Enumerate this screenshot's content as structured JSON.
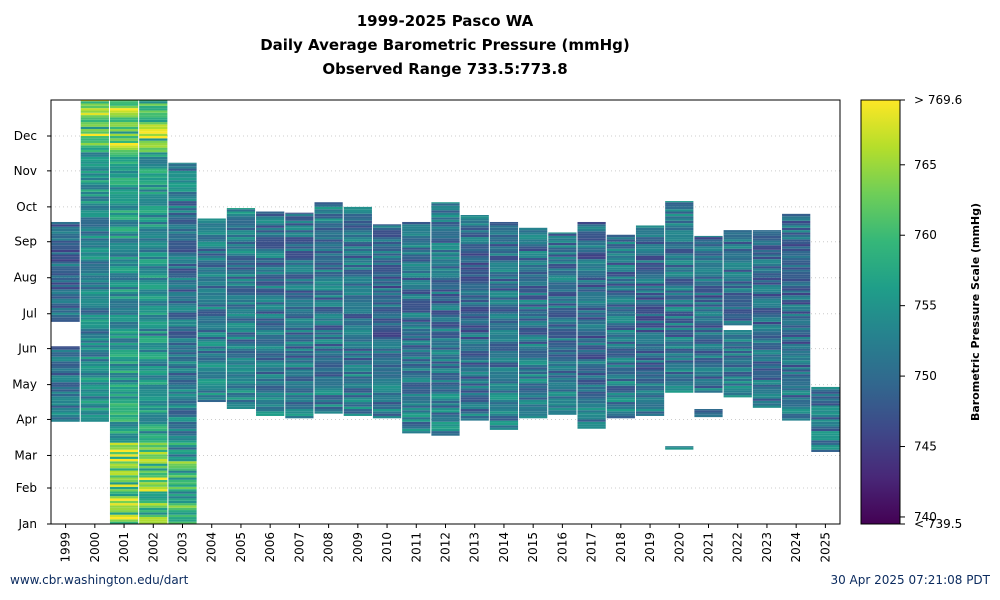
{
  "title_lines": [
    "1999-2025 Pasco WA",
    "Daily Average Barometric Pressure (mmHg)",
    "Observed Range 733.5:773.8"
  ],
  "footer": {
    "source_url": "www.cbr.washington.edu/dart",
    "timestamp": "30 Apr 2025 07:21:08 PDT"
  },
  "chart_data": {
    "type": "heatmap",
    "title": "1999-2025 Pasco WA Daily Average Barometric Pressure (mmHg) Observed Range 733.5:773.8",
    "x_label": "",
    "y_label": "",
    "colorbar_label": "Barometric Pressure Scale (mmHg)",
    "colormap": "viridis",
    "color_range": [
      739.5,
      769.6
    ],
    "colorbar_ticks": [
      "< 739.5",
      "740",
      "745",
      "750",
      "755",
      "760",
      "765",
      "> 769.6"
    ],
    "colorbar_tick_values": [
      739.5,
      740,
      745,
      750,
      755,
      760,
      765,
      769.6
    ],
    "years": [
      "1999",
      "2000",
      "2001",
      "2002",
      "2003",
      "2004",
      "2005",
      "2006",
      "2007",
      "2008",
      "2009",
      "2010",
      "2011",
      "2012",
      "2013",
      "2014",
      "2015",
      "2016",
      "2017",
      "2018",
      "2019",
      "2020",
      "2021",
      "2022",
      "2023",
      "2024",
      "2025"
    ],
    "months": [
      "Jan",
      "Feb",
      "Mar",
      "Apr",
      "May",
      "Jun",
      "Jul",
      "Aug",
      "Sep",
      "Oct",
      "Nov",
      "Dec"
    ],
    "y_range_day_of_year": [
      1,
      366
    ],
    "grid": "horizontal dotted at month boundaries",
    "coverage_day_of_year": [
      {
        "year": "1999",
        "segments": [
          [
            89,
            153
          ],
          [
            175,
            260
          ]
        ],
        "mean": 751
      },
      {
        "year": "2000",
        "segments": [
          [
            89,
            366
          ]
        ],
        "mean": 754
      },
      {
        "year": "2001",
        "segments": [
          [
            1,
            366
          ]
        ],
        "mean": 756
      },
      {
        "year": "2002",
        "segments": [
          [
            1,
            366
          ]
        ],
        "mean": 755
      },
      {
        "year": "2003",
        "segments": [
          [
            1,
            311
          ]
        ],
        "mean": 752
      },
      {
        "year": "2004",
        "segments": [
          [
            106,
            263
          ]
        ],
        "mean": 753
      },
      {
        "year": "2005",
        "segments": [
          [
            100,
            272
          ]
        ],
        "mean": 753
      },
      {
        "year": "2006",
        "segments": [
          [
            94,
            269
          ]
        ],
        "mean": 752
      },
      {
        "year": "2007",
        "segments": [
          [
            92,
            268
          ]
        ],
        "mean": 752
      },
      {
        "year": "2008",
        "segments": [
          [
            96,
            277
          ]
        ],
        "mean": 752
      },
      {
        "year": "2009",
        "segments": [
          [
            94,
            273
          ]
        ],
        "mean": 752
      },
      {
        "year": "2010",
        "segments": [
          [
            92,
            258
          ]
        ],
        "mean": 751
      },
      {
        "year": "2011",
        "segments": [
          [
            79,
            260
          ]
        ],
        "mean": 752
      },
      {
        "year": "2012",
        "segments": [
          [
            77,
            277
          ]
        ],
        "mean": 752
      },
      {
        "year": "2013",
        "segments": [
          [
            90,
            266
          ]
        ],
        "mean": 751
      },
      {
        "year": "2014",
        "segments": [
          [
            82,
            260
          ]
        ],
        "mean": 752
      },
      {
        "year": "2015",
        "segments": [
          [
            92,
            255
          ]
        ],
        "mean": 752
      },
      {
        "year": "2016",
        "segments": [
          [
            95,
            251
          ]
        ],
        "mean": 752
      },
      {
        "year": "2017",
        "segments": [
          [
            83,
            260
          ]
        ],
        "mean": 751
      },
      {
        "year": "2018",
        "segments": [
          [
            92,
            249
          ]
        ],
        "mean": 752
      },
      {
        "year": "2019",
        "segments": [
          [
            94,
            257
          ]
        ],
        "mean": 751
      },
      {
        "year": "2020",
        "segments": [
          [
            65,
            67
          ],
          [
            114,
            278
          ]
        ],
        "mean": 752
      },
      {
        "year": "2021",
        "segments": [
          [
            93,
            99
          ],
          [
            114,
            248
          ]
        ],
        "mean": 751
      },
      {
        "year": "2022",
        "segments": [
          [
            110,
            167
          ],
          [
            172,
            253
          ]
        ],
        "mean": 752
      },
      {
        "year": "2023",
        "segments": [
          [
            101,
            253
          ]
        ],
        "mean": 751
      },
      {
        "year": "2024",
        "segments": [
          [
            90,
            267
          ]
        ],
        "mean": 751
      },
      {
        "year": "2025",
        "segments": [
          [
            63,
            118
          ]
        ],
        "mean": 751
      }
    ]
  },
  "colors": {
    "viridis": [
      "#440154",
      "#482878",
      "#3e4989",
      "#31688e",
      "#26828e",
      "#1f9e89",
      "#35b779",
      "#6ece58",
      "#b5de2b",
      "#fde725"
    ]
  }
}
